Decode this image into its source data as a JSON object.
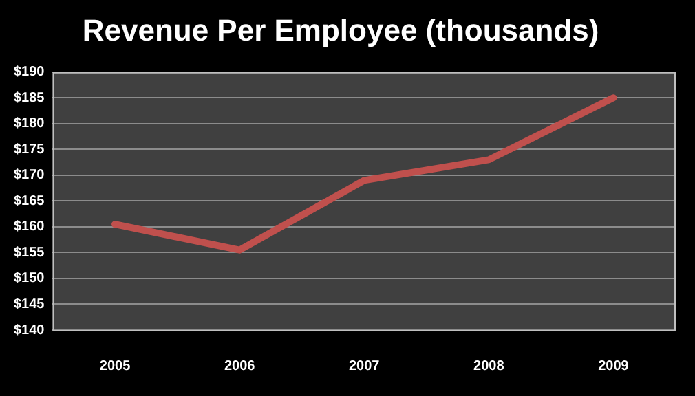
{
  "chart_data": {
    "type": "line",
    "title": "Revenue Per Employee (thousands)",
    "categories": [
      "2005",
      "2006",
      "2007",
      "2008",
      "2009"
    ],
    "series": [
      {
        "color": "#c0504d",
        "values": [
          160.5,
          155.5,
          169,
          173,
          185
        ]
      }
    ],
    "ylim": [
      140,
      190
    ],
    "yticks": [
      {
        "value": 140,
        "label": "$140"
      },
      {
        "value": 145,
        "label": "$145"
      },
      {
        "value": 150,
        "label": "$150"
      },
      {
        "value": 155,
        "label": "$155"
      },
      {
        "value": 160,
        "label": "$160"
      },
      {
        "value": 165,
        "label": "$165"
      },
      {
        "value": 170,
        "label": "$170"
      },
      {
        "value": 175,
        "label": "$175"
      },
      {
        "value": 180,
        "label": "$180"
      },
      {
        "value": 185,
        "label": "$185"
      },
      {
        "value": 190,
        "label": "$190"
      }
    ],
    "grid": "y",
    "legend": false,
    "marker": "none",
    "line_style": "solid"
  }
}
